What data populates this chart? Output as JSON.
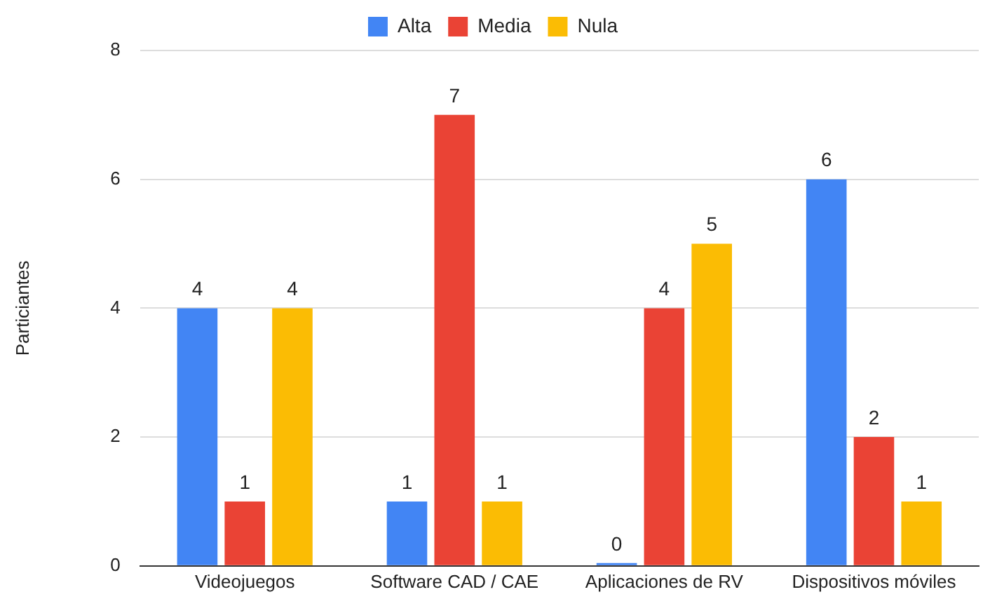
{
  "chart_data": {
    "type": "bar",
    "ylabel": "Particiantes",
    "categories": [
      "Videojuegos",
      "Software CAD / CAE",
      "Aplicaciones de RV",
      "Dispositivos móviles"
    ],
    "series": [
      {
        "name": "Alta",
        "color": "#4285f4",
        "values": [
          4,
          1,
          0,
          6
        ]
      },
      {
        "name": "Media",
        "color": "#ea4335",
        "values": [
          1,
          7,
          4,
          2
        ]
      },
      {
        "name": "Nula",
        "color": "#fbbc04",
        "values": [
          4,
          1,
          5,
          1
        ]
      }
    ],
    "ylim": [
      0,
      8
    ],
    "yticks": [
      0,
      2,
      4,
      6,
      8
    ],
    "grid": "y",
    "legend": "top",
    "data_labels": true
  }
}
